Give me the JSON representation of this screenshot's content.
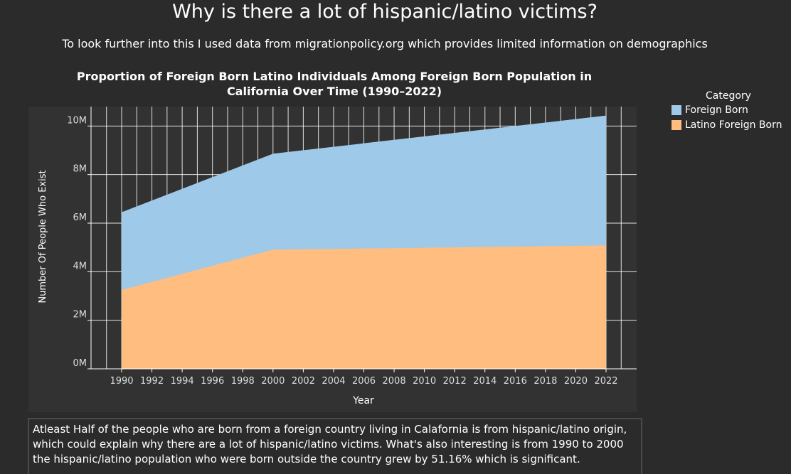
{
  "page": {
    "title": "Why is there a lot of hispanic/latino victims?",
    "subtitle": "To look further into this I used data from migrationpolicy.org which provides limited information on demographics",
    "note": "Atleast Half of the people who are born from a foreign country living in Calafornia is from hispanic/latino origin, which could explain why there are a lot of hispanic/latino victims. What's also interesting is from 1990 to 2000 the hispanic/latino population who were born outside the country grew by 51.16% which is significant."
  },
  "legend": {
    "title": "Category",
    "items": [
      {
        "label": "Foreign Born",
        "color": "#9ec9e8"
      },
      {
        "label": "Latino Foreign Born",
        "color": "#ffbd7f"
      }
    ]
  },
  "chart_data": {
    "type": "area",
    "title": "Proportion of Foreign Born Latino Individuals Among Foreign Born Population in California Over Time (1990–2022)",
    "xlabel": "Year",
    "ylabel": "Number Of People Who Exist",
    "x_ticks": [
      "1990",
      "1992",
      "1994",
      "1996",
      "1998",
      "2000",
      "2002",
      "2004",
      "2006",
      "2008",
      "2010",
      "2012",
      "2014",
      "2016",
      "2018",
      "2020",
      "2022"
    ],
    "y_ticks": [
      "0M",
      "2M",
      "4M",
      "6M",
      "8M",
      "10M"
    ],
    "ylim": [
      0,
      10800000
    ],
    "xlim": [
      1985,
      2024
    ],
    "grid": true,
    "legend_position": "right",
    "x": [
      1990,
      2000,
      2022
    ],
    "series": [
      {
        "name": "Foreign Born",
        "color": "#9ec9e8",
        "values": [
          6450000,
          8860000,
          10430000
        ]
      },
      {
        "name": "Latino Foreign Born",
        "color": "#ffbd7f",
        "values": [
          3250000,
          4910000,
          5080000
        ]
      }
    ]
  }
}
